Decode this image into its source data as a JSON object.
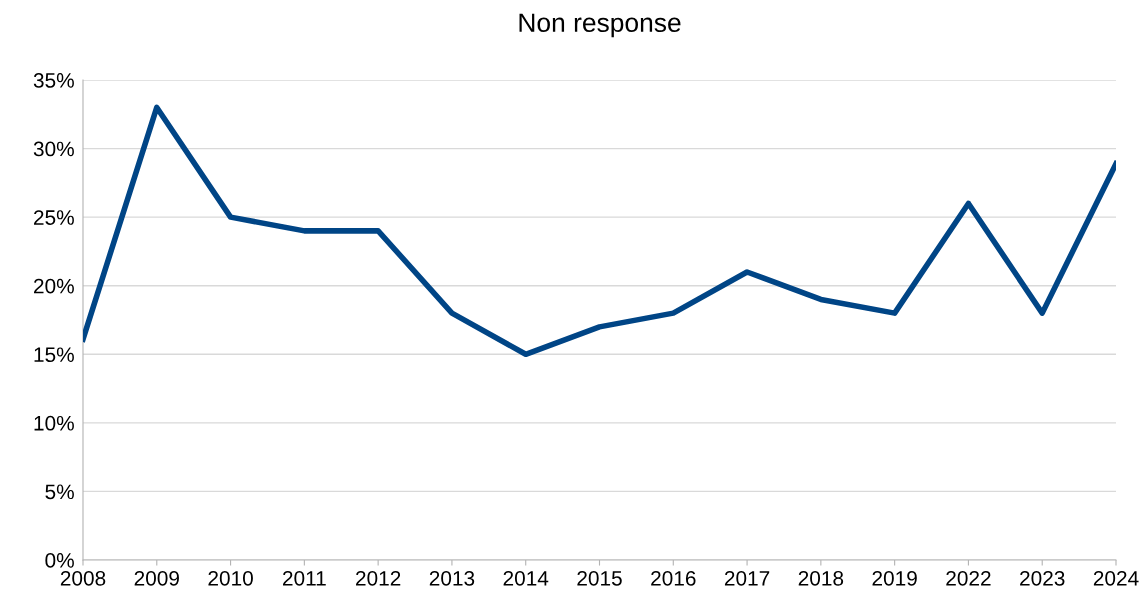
{
  "chart_data": {
    "type": "line",
    "title": "Non response",
    "categories": [
      "2008",
      "2009",
      "2010",
      "2011",
      "2012",
      "2013",
      "2014",
      "2015",
      "2016",
      "2017",
      "2018",
      "2019",
      "2022",
      "2023",
      "2024"
    ],
    "series": [
      {
        "color": "#004586",
        "values": [
          16.1,
          33,
          25,
          24,
          24,
          18,
          15,
          17,
          18,
          21,
          19,
          18,
          26,
          18,
          28.9
        ]
      }
    ],
    "ylim": [
      0,
      35
    ],
    "yticks": [
      {
        "value": 0,
        "label": "0%"
      },
      {
        "value": 5,
        "label": "5%"
      },
      {
        "value": 10,
        "label": "10%"
      },
      {
        "value": 15,
        "label": "15%"
      },
      {
        "value": 20,
        "label": "20%"
      },
      {
        "value": 25,
        "label": "25%"
      },
      {
        "value": 30,
        "label": "30%"
      },
      {
        "value": 35,
        "label": "35%"
      }
    ],
    "grid": "y",
    "legend": false,
    "marker": "none",
    "line_style": "solid"
  }
}
